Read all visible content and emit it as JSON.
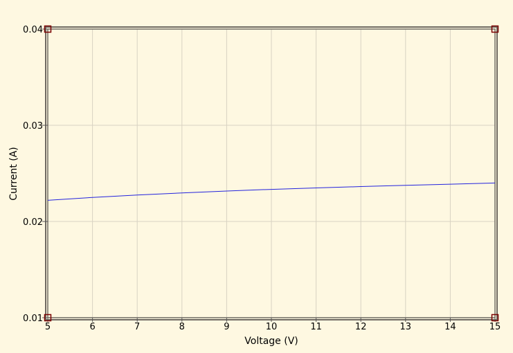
{
  "chart_data": {
    "type": "line",
    "title": "",
    "xlabel": "Voltage (V)",
    "ylabel": "Current (A)",
    "xlim": [
      5,
      15
    ],
    "ylim": [
      0.01,
      0.04
    ],
    "x_ticks": [
      5,
      6,
      7,
      8,
      9,
      10,
      11,
      12,
      13,
      14,
      15
    ],
    "y_ticks": [
      0.01,
      0.02,
      0.03,
      0.04
    ],
    "x_tick_labels": [
      "5",
      "6",
      "7",
      "8",
      "9",
      "10",
      "11",
      "12",
      "13",
      "14",
      "15"
    ],
    "y_tick_labels": [
      "0.01",
      "0.02",
      "0.03",
      "0.04"
    ],
    "grid": true,
    "legend": "none",
    "colors": {
      "background": "#fef8e1",
      "line": "#2222dd",
      "grid": "#d8d2c2",
      "frame": "#6f6a62",
      "marker": "#7a0000"
    },
    "series": [
      {
        "x": [
          5,
          6,
          7,
          8,
          9,
          10,
          11,
          12,
          13,
          14,
          15
        ],
        "y": [
          0.0222,
          0.0225,
          0.02275,
          0.02297,
          0.02317,
          0.02334,
          0.02349,
          0.02363,
          0.02376,
          0.02388,
          0.024
        ]
      }
    ]
  }
}
